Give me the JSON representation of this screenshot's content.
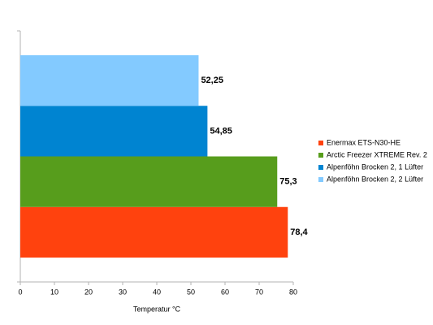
{
  "chart_data": {
    "type": "hbar",
    "categories": [
      null
    ],
    "series": [
      {
        "name": "Enermax ETS-N30-HE",
        "color": "#ff420e",
        "values": [
          78.4
        ],
        "value_labels": [
          "78,4"
        ]
      },
      {
        "name": "Arctic Freezer XTREME Rev. 2",
        "color": "#579d1c",
        "values": [
          75.3
        ],
        "value_labels": [
          "75,3"
        ]
      },
      {
        "name": "Alpenföhn Brocken 2, 1 Lüfter",
        "color": "#0084d1",
        "values": [
          54.85
        ],
        "value_labels": [
          "54,85"
        ]
      },
      {
        "name": "Alpenföhn Brocken 2, 2 Lüfter",
        "color": "#83caff",
        "values": [
          52.25
        ],
        "value_labels": [
          "52,25"
        ]
      }
    ],
    "xlabel": "Temperatur °C",
    "xlim": [
      0,
      80
    ],
    "xticks": [
      0,
      10,
      20,
      30,
      40,
      50,
      60,
      70,
      80
    ],
    "grid": false,
    "legend": "right"
  }
}
